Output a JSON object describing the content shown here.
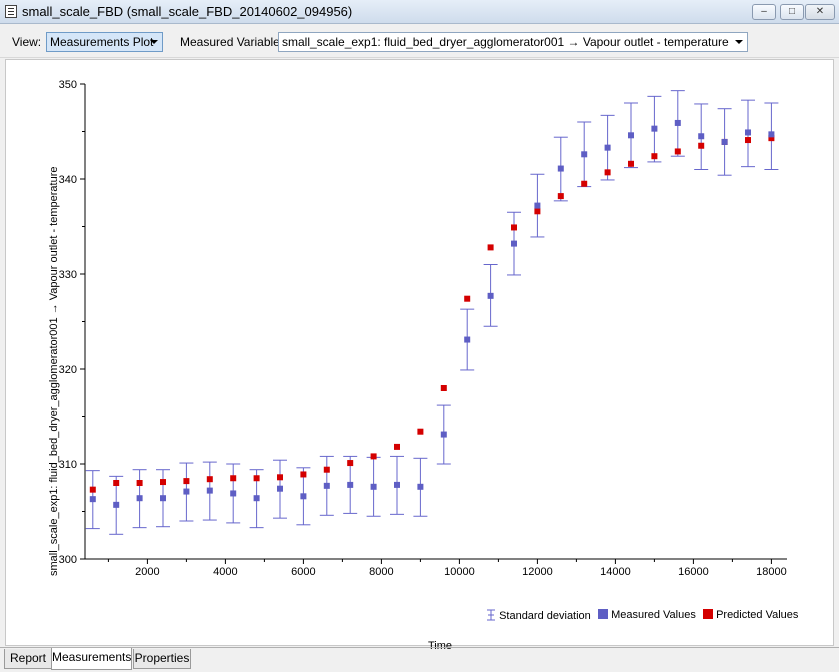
{
  "window": {
    "title": "small_scale_FBD  (small_scale_FBD_20140602_094956)",
    "min_glyph": "–",
    "max_glyph": "□",
    "close_glyph": "✕"
  },
  "toolbar": {
    "view_label": "View:",
    "view_value": "Measurements Plot",
    "variable_label": "Measured Variable:",
    "variable_value": "small_scale_exp1: fluid_bed_dryer_agglomerator001 → Vapour outlet - temperature"
  },
  "chart_data": {
    "type": "scatter",
    "xlabel": "Time",
    "ylabel": "small_scale_exp1: fluid_bed_dryer_agglomerator001 → Vapour outlet - temperature",
    "xlim": [
      400,
      18400
    ],
    "ylim": [
      300,
      350
    ],
    "xticks": [
      2000,
      4000,
      6000,
      8000,
      10000,
      12000,
      14000,
      16000,
      18000
    ],
    "yticks": [
      300,
      310,
      320,
      330,
      340,
      350
    ],
    "grid": false,
    "legend_position": "bottom-right",
    "x": [
      600,
      1200,
      1800,
      2400,
      3000,
      3600,
      4200,
      4800,
      5400,
      6000,
      6600,
      7200,
      7800,
      8400,
      9000,
      9600,
      10200,
      10800,
      11400,
      12000,
      12600,
      13200,
      13800,
      14400,
      15000,
      15600,
      16200,
      16800,
      17400,
      18000
    ],
    "series": [
      {
        "name": "Measured Values",
        "color": "#5e5ec4",
        "values": [
          306.3,
          305.7,
          306.4,
          306.4,
          307.1,
          307.2,
          306.9,
          306.4,
          307.4,
          306.6,
          307.7,
          307.8,
          307.6,
          307.8,
          307.6,
          313.1,
          323.1,
          327.7,
          333.2,
          337.2,
          341.1,
          342.6,
          343.3,
          344.6,
          345.3,
          345.9,
          344.5,
          343.9,
          344.9,
          344.7
        ]
      },
      {
        "name": "Predicted Values",
        "color": "#d40000",
        "values": [
          307.3,
          308.0,
          308.0,
          308.1,
          308.2,
          308.4,
          308.5,
          308.5,
          308.6,
          308.9,
          309.4,
          310.1,
          310.8,
          311.8,
          313.4,
          318.0,
          327.4,
          332.8,
          334.9,
          336.6,
          338.2,
          339.5,
          340.7,
          341.6,
          342.4,
          342.9,
          343.5,
          343.9,
          344.1,
          344.3
        ]
      },
      {
        "name": "Standard deviation",
        "color": "#6666cc",
        "lower": [
          303.2,
          302.6,
          303.3,
          303.4,
          304.0,
          304.1,
          303.8,
          303.3,
          304.3,
          303.6,
          304.6,
          304.8,
          304.5,
          304.7,
          304.5,
          310.0,
          319.9,
          324.5,
          329.9,
          333.9,
          337.7,
          339.2,
          339.9,
          341.2,
          341.8,
          342.4,
          341.0,
          340.4,
          341.3,
          341.0
        ],
        "upper": [
          309.3,
          308.7,
          309.4,
          309.4,
          310.1,
          310.2,
          310.0,
          309.4,
          310.4,
          309.6,
          310.8,
          310.8,
          310.7,
          310.8,
          310.6,
          316.2,
          326.3,
          331.0,
          336.5,
          340.5,
          344.4,
          346.0,
          346.7,
          348.0,
          348.7,
          349.3,
          347.9,
          347.4,
          348.3,
          348.0
        ]
      }
    ]
  },
  "tabs": [
    "Report",
    "Measurements",
    "Properties"
  ],
  "active_tab": "Measurements"
}
